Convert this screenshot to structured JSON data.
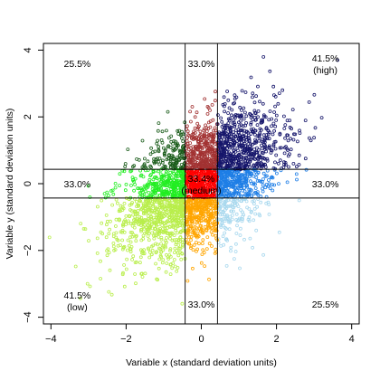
{
  "chart_data": {
    "type": "scatter",
    "title": "",
    "xlabel": "Variable x (standard deviation units)",
    "ylabel": "Variable y (standard deviation units)",
    "xlim": [
      -4.2,
      4.2
    ],
    "ylim": [
      -4.2,
      4.2
    ],
    "xticks": [
      -4,
      -2,
      0,
      2,
      4
    ],
    "yticks": [
      -4,
      -2,
      0,
      2,
      4
    ],
    "xtick_labels": [
      "−4",
      "−2",
      "0",
      "2",
      "4"
    ],
    "ytick_labels": [
      "−4",
      "−2",
      "0",
      "2",
      "4"
    ],
    "grid": false,
    "cutoffs": {
      "x": [
        -0.43,
        0.43
      ],
      "y": [
        -0.43,
        0.43
      ]
    },
    "correlation": 0.5,
    "n_points": 3500,
    "region_colors": {
      "top_left": "#1a5c1a",
      "top_mid": "#a23232",
      "top_right": "#16166b",
      "mid_left": "#22ee22",
      "mid_mid": "#ff0000",
      "mid_right": "#1e7ee6",
      "bottom_left": "#b8ee4a",
      "bottom_mid": "#ffa500",
      "bottom_right": "#a8d8ee"
    },
    "annotations": [
      {
        "key": "top_left",
        "text": "25.5%",
        "x": -3.3,
        "y": 3.6
      },
      {
        "key": "top_mid",
        "text": "33.0%",
        "x": 0,
        "y": 3.6
      },
      {
        "key": "top_right",
        "text": "41.5%",
        "text2": "(high)",
        "x": 3.3,
        "y": 3.6
      },
      {
        "key": "mid_left",
        "text": "33.0%",
        "x": -3.3,
        "y": 0
      },
      {
        "key": "mid_mid",
        "text": "33.4%",
        "text2": "(medium)",
        "x": 0,
        "y": 0
      },
      {
        "key": "mid_right",
        "text": "33.0%",
        "x": 3.3,
        "y": 0
      },
      {
        "key": "bottom_left",
        "text": "41.5%",
        "text2": "(low)",
        "x": -3.3,
        "y": -3.5
      },
      {
        "key": "bottom_mid",
        "text": "33.0%",
        "x": 0,
        "y": -3.6
      },
      {
        "key": "bottom_right",
        "text": "25.5%",
        "x": 3.3,
        "y": -3.6
      }
    ]
  }
}
